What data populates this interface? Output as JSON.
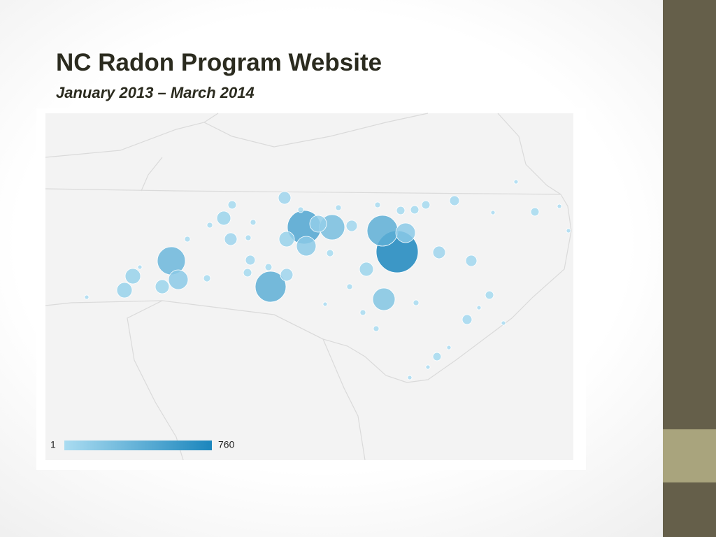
{
  "header": {
    "title": "NC Radon Program Website",
    "subtitle": "January 2013 – March 2014"
  },
  "map": {
    "legend": {
      "min": 1,
      "max": 760,
      "color_min": "#aadcf1",
      "color_max": "#1b86bd"
    },
    "bubbles": [
      760,
      486,
      274,
      409,
      338,
      409,
      216,
      102,
      102,
      165,
      84,
      102,
      165,
      84,
      68,
      54,
      68,
      84,
      68,
      41,
      30,
      165,
      122,
      54,
      68,
      41,
      30,
      41,
      30,
      30,
      30,
      30,
      30,
      30,
      21,
      21,
      21,
      14,
      14,
      14,
      14,
      14,
      14,
      14,
      14,
      14,
      14,
      14,
      8,
      8,
      8,
      8,
      8,
      8,
      8,
      8,
      8,
      8,
      8,
      8
    ]
  }
}
